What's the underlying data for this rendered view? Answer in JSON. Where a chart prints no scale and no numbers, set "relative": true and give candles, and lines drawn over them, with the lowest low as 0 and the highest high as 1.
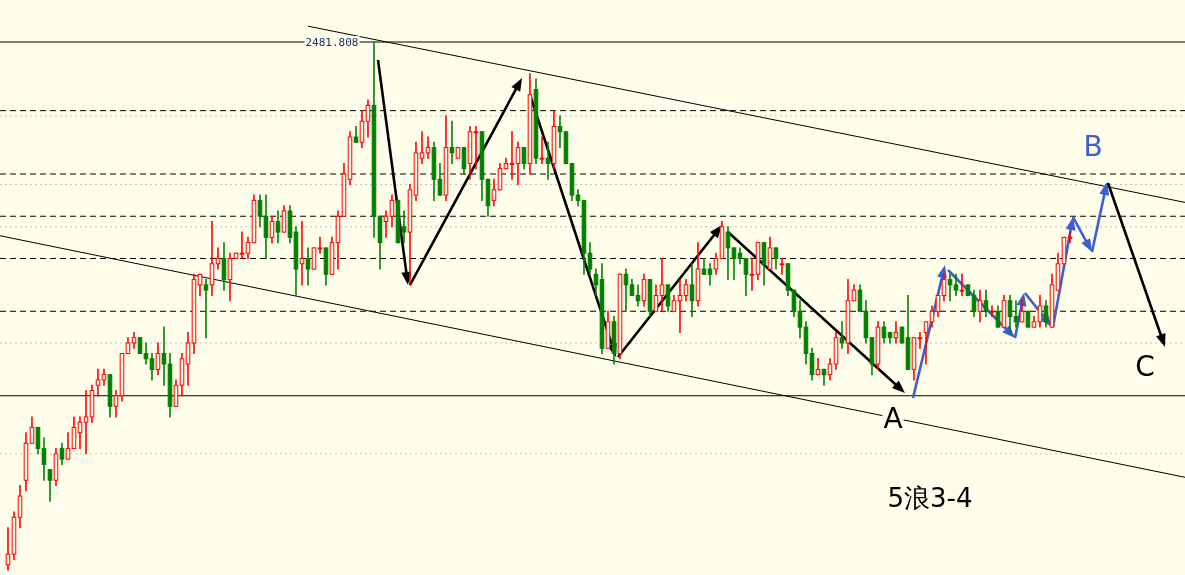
{
  "chart_data": {
    "type": "candlestick",
    "relative": true,
    "categories": [
      null,
      null,
      null,
      null,
      null,
      null,
      null,
      null,
      null,
      null,
      null,
      null,
      null,
      null,
      null,
      null,
      null,
      null,
      null,
      null,
      null,
      null,
      null,
      null,
      null,
      null,
      null,
      null,
      null,
      null,
      null,
      null,
      null,
      null,
      null,
      null,
      null,
      null,
      null,
      null,
      null,
      null,
      null,
      null,
      null,
      null,
      null,
      null,
      null,
      null,
      null,
      null,
      null,
      null,
      null,
      null,
      null,
      null,
      null,
      null,
      null,
      null,
      null,
      null,
      null,
      null,
      null,
      null,
      null,
      null,
      null,
      null,
      null,
      null,
      null,
      null,
      null,
      null,
      null,
      null,
      null,
      null,
      null,
      null,
      null,
      null,
      null,
      null,
      null,
      null,
      null,
      null,
      null,
      null,
      null,
      null,
      null,
      null,
      null,
      null,
      null,
      null,
      null,
      null,
      null,
      null,
      null,
      null,
      null,
      null,
      null,
      null,
      null,
      null,
      null,
      null,
      null,
      null,
      null,
      null,
      null,
      null,
      null,
      null,
      null,
      null,
      null,
      null,
      null,
      null,
      null,
      null,
      null,
      null,
      null,
      null,
      null,
      null,
      null,
      null,
      null,
      null,
      null,
      null,
      null,
      null,
      null,
      null,
      null,
      null,
      null,
      null,
      null,
      null,
      null,
      null,
      null,
      null,
      null,
      null,
      null,
      null,
      null,
      null,
      null,
      null,
      null,
      null,
      null,
      null,
      null,
      null,
      null,
      null,
      null,
      null,
      null,
      null
    ],
    "ohlc": [
      [
        0.01,
        0.08,
        0.0,
        0.03
      ],
      [
        0.03,
        0.11,
        0.02,
        0.1
      ],
      [
        0.1,
        0.16,
        0.08,
        0.14
      ],
      [
        0.17,
        0.26,
        0.15,
        0.24
      ],
      [
        0.24,
        0.29,
        0.24,
        0.27
      ],
      [
        0.27,
        0.27,
        0.22,
        0.23
      ],
      [
        0.23,
        0.25,
        0.17,
        0.2
      ],
      [
        0.19,
        0.19,
        0.13,
        0.17
      ],
      [
        0.17,
        0.23,
        0.16,
        0.22
      ],
      [
        0.23,
        0.24,
        0.2,
        0.21
      ],
      [
        0.21,
        0.26,
        0.21,
        0.23
      ],
      [
        0.23,
        0.29,
        0.23,
        0.27
      ],
      [
        0.26,
        0.29,
        0.23,
        0.28
      ],
      [
        0.28,
        0.34,
        0.22,
        0.29
      ],
      [
        0.29,
        0.35,
        0.28,
        0.34
      ],
      [
        0.35,
        0.38,
        0.33,
        0.36
      ],
      [
        0.36,
        0.38,
        0.35,
        0.37
      ],
      [
        0.37,
        0.37,
        0.29,
        0.31
      ],
      [
        0.31,
        0.34,
        0.29,
        0.33
      ],
      [
        0.33,
        0.41,
        0.32,
        0.41
      ],
      [
        0.41,
        0.44,
        0.41,
        0.43
      ],
      [
        0.43,
        0.45,
        0.42,
        0.44
      ],
      [
        0.44,
        0.44,
        0.41,
        0.41
      ],
      [
        0.41,
        0.43,
        0.39,
        0.4
      ],
      [
        0.4,
        0.41,
        0.36,
        0.38
      ],
      [
        0.38,
        0.43,
        0.37,
        0.41
      ],
      [
        0.41,
        0.46,
        0.35,
        0.39
      ],
      [
        0.39,
        0.41,
        0.29,
        0.31
      ],
      [
        0.31,
        0.36,
        0.31,
        0.35
      ],
      [
        0.35,
        0.41,
        0.33,
        0.4
      ],
      [
        0.39,
        0.45,
        0.35,
        0.43
      ],
      [
        0.43,
        0.56,
        0.41,
        0.55
      ],
      [
        0.54,
        0.56,
        0.52,
        0.56
      ],
      [
        0.54,
        0.55,
        0.44,
        0.53
      ],
      [
        0.54,
        0.66,
        0.52,
        0.58
      ],
      [
        0.58,
        0.61,
        0.57,
        0.59
      ],
      [
        0.59,
        0.62,
        0.53,
        0.55
      ],
      [
        0.55,
        0.6,
        0.51,
        0.59
      ],
      [
        0.59,
        0.6,
        0.59,
        0.6
      ],
      [
        0.6,
        0.64,
        0.59,
        0.6
      ],
      [
        0.6,
        0.63,
        0.59,
        0.62
      ],
      [
        0.62,
        0.71,
        0.62,
        0.7
      ],
      [
        0.7,
        0.71,
        0.65,
        0.67
      ],
      [
        0.67,
        0.71,
        0.59,
        0.63
      ],
      [
        0.63,
        0.67,
        0.62,
        0.66
      ],
      [
        0.66,
        0.68,
        0.62,
        0.64
      ],
      [
        0.64,
        0.69,
        0.64,
        0.68
      ],
      [
        0.68,
        0.69,
        0.62,
        0.63
      ],
      [
        0.64,
        0.65,
        0.52,
        0.57
      ],
      [
        0.58,
        0.66,
        0.54,
        0.59
      ],
      [
        0.59,
        0.61,
        0.54,
        0.57
      ],
      [
        0.57,
        0.61,
        0.57,
        0.61
      ],
      [
        0.61,
        0.63,
        0.6,
        0.61
      ],
      [
        0.61,
        0.61,
        0.54,
        0.56
      ],
      [
        0.56,
        0.63,
        0.56,
        0.62
      ],
      [
        0.62,
        0.68,
        0.57,
        0.67
      ],
      [
        0.67,
        0.77,
        0.67,
        0.75
      ],
      [
        0.74,
        0.83,
        0.73,
        0.82
      ],
      [
        0.82,
        0.84,
        0.81,
        0.81
      ],
      [
        0.81,
        0.87,
        0.8,
        0.85
      ],
      [
        0.85,
        0.89,
        0.82,
        0.88
      ],
      [
        0.88,
        1.0,
        0.63,
        0.67
      ],
      [
        0.67,
        0.67,
        0.57,
        0.62
      ],
      [
        0.66,
        0.68,
        0.63,
        0.67
      ],
      [
        0.67,
        0.71,
        0.65,
        0.7
      ],
      [
        0.7,
        0.7,
        0.62,
        0.62
      ],
      [
        0.65,
        0.68,
        0.62,
        0.64
      ],
      [
        0.64,
        0.73,
        0.54,
        0.72
      ],
      [
        0.71,
        0.81,
        0.7,
        0.79
      ],
      [
        0.78,
        0.83,
        0.77,
        0.79
      ],
      [
        0.79,
        0.82,
        0.78,
        0.8
      ],
      [
        0.8,
        0.81,
        0.7,
        0.74
      ],
      [
        0.74,
        0.77,
        0.71,
        0.71
      ],
      [
        0.71,
        0.86,
        0.7,
        0.8
      ],
      [
        0.8,
        0.85,
        0.77,
        0.79
      ],
      [
        0.78,
        0.8,
        0.78,
        0.8
      ],
      [
        0.8,
        0.8,
        0.75,
        0.76
      ],
      [
        0.77,
        0.84,
        0.74,
        0.83
      ],
      [
        0.83,
        0.84,
        0.76,
        0.83
      ],
      [
        0.83,
        0.83,
        0.7,
        0.74
      ],
      [
        0.74,
        0.74,
        0.67,
        0.69
      ],
      [
        0.7,
        0.74,
        0.69,
        0.72
      ],
      [
        0.72,
        0.77,
        0.72,
        0.76
      ],
      [
        0.76,
        0.78,
        0.76,
        0.77
      ],
      [
        0.77,
        0.83,
        0.74,
        0.77
      ],
      [
        0.77,
        0.81,
        0.73,
        0.8
      ],
      [
        0.8,
        0.8,
        0.76,
        0.77
      ],
      [
        0.77,
        0.94,
        0.75,
        0.9
      ],
      [
        0.91,
        0.93,
        0.77,
        0.78
      ],
      [
        0.78,
        0.82,
        0.77,
        0.78
      ],
      [
        0.78,
        0.81,
        0.74,
        0.77
      ],
      [
        0.77,
        0.87,
        0.76,
        0.84
      ],
      [
        0.84,
        0.86,
        0.8,
        0.83
      ],
      [
        0.83,
        0.83,
        0.77,
        0.77
      ],
      [
        0.77,
        0.77,
        0.7,
        0.71
      ],
      [
        0.71,
        0.72,
        0.69,
        0.7
      ],
      [
        0.7,
        0.7,
        0.56,
        0.6
      ],
      [
        0.6,
        0.62,
        0.56,
        0.57
      ],
      [
        0.56,
        0.57,
        0.52,
        0.54
      ],
      [
        0.55,
        0.58,
        0.41,
        0.42
      ],
      [
        0.42,
        0.49,
        0.42,
        0.47
      ],
      [
        0.47,
        0.48,
        0.39,
        0.41
      ],
      [
        0.41,
        0.56,
        0.4,
        0.56
      ],
      [
        0.56,
        0.57,
        0.49,
        0.54
      ],
      [
        0.54,
        0.55,
        0.52,
        0.52
      ],
      [
        0.52,
        0.54,
        0.5,
        0.51
      ],
      [
        0.51,
        0.56,
        0.5,
        0.55
      ],
      [
        0.55,
        0.55,
        0.48,
        0.49
      ],
      [
        0.49,
        0.54,
        0.49,
        0.52
      ],
      [
        0.52,
        0.59,
        0.49,
        0.54
      ],
      [
        0.54,
        0.54,
        0.49,
        0.5
      ],
      [
        0.49,
        0.52,
        0.49,
        0.51
      ],
      [
        0.51,
        0.55,
        0.45,
        0.52
      ],
      [
        0.52,
        0.55,
        0.51,
        0.54
      ],
      [
        0.54,
        0.58,
        0.48,
        0.51
      ],
      [
        0.51,
        0.62,
        0.5,
        0.57
      ],
      [
        0.57,
        0.59,
        0.56,
        0.56
      ],
      [
        0.57,
        0.58,
        0.54,
        0.56
      ],
      [
        0.57,
        0.6,
        0.56,
        0.59
      ],
      [
        0.59,
        0.66,
        0.59,
        0.65
      ],
      [
        0.64,
        0.65,
        0.55,
        0.61
      ],
      [
        0.61,
        0.61,
        0.55,
        0.59
      ],
      [
        0.6,
        0.61,
        0.58,
        0.59
      ],
      [
        0.59,
        0.59,
        0.52,
        0.56
      ],
      [
        0.56,
        0.59,
        0.53,
        0.56
      ],
      [
        0.56,
        0.62,
        0.55,
        0.62
      ],
      [
        0.62,
        0.62,
        0.54,
        0.58
      ],
      [
        0.57,
        0.63,
        0.57,
        0.61
      ],
      [
        0.61,
        0.61,
        0.57,
        0.59
      ],
      [
        0.58,
        0.59,
        0.56,
        0.58
      ],
      [
        0.58,
        0.58,
        0.52,
        0.53
      ],
      [
        0.53,
        0.53,
        0.48,
        0.49
      ],
      [
        0.49,
        0.51,
        0.44,
        0.46
      ],
      [
        0.46,
        0.47,
        0.39,
        0.41
      ],
      [
        0.41,
        0.42,
        0.36,
        0.37
      ],
      [
        0.37,
        0.4,
        0.37,
        0.38
      ],
      [
        0.38,
        0.38,
        0.35,
        0.37
      ],
      [
        0.37,
        0.4,
        0.36,
        0.39
      ],
      [
        0.39,
        0.45,
        0.38,
        0.44
      ],
      [
        0.44,
        0.47,
        0.42,
        0.43
      ],
      [
        0.43,
        0.55,
        0.41,
        0.51
      ],
      [
        0.51,
        0.54,
        0.51,
        0.53
      ],
      [
        0.53,
        0.54,
        0.49,
        0.49
      ],
      [
        0.49,
        0.51,
        0.43,
        0.44
      ],
      [
        0.44,
        0.44,
        0.37,
        0.39
      ],
      [
        0.39,
        0.47,
        0.38,
        0.46
      ],
      [
        0.46,
        0.47,
        0.43,
        0.44
      ],
      [
        0.45,
        0.45,
        0.43,
        0.44
      ],
      [
        0.44,
        0.47,
        0.43,
        0.45
      ],
      [
        0.46,
        0.46,
        0.43,
        0.43
      ],
      [
        0.44,
        0.52,
        0.38,
        0.38
      ],
      [
        0.38,
        0.44,
        0.36,
        0.44
      ],
      [
        0.44,
        0.45,
        0.42,
        0.44
      ],
      [
        0.45,
        0.47,
        0.39,
        0.47
      ],
      [
        0.47,
        0.5,
        0.46,
        0.49
      ],
      [
        0.49,
        0.52,
        0.48,
        0.52
      ],
      [
        0.52,
        0.56,
        0.51,
        0.55
      ],
      [
        0.55,
        0.56,
        0.51,
        0.54
      ],
      [
        0.54,
        0.56,
        0.52,
        0.53
      ],
      [
        0.53,
        0.56,
        0.52,
        0.53
      ],
      [
        0.54,
        0.54,
        0.52,
        0.52
      ],
      [
        0.52,
        0.53,
        0.48,
        0.49
      ],
      [
        0.49,
        0.53,
        0.47,
        0.51
      ],
      [
        0.51,
        0.53,
        0.48,
        0.49
      ],
      [
        0.49,
        0.5,
        0.48,
        0.49
      ],
      [
        0.49,
        0.5,
        0.46,
        0.46
      ],
      [
        0.46,
        0.52,
        0.46,
        0.51
      ],
      [
        0.51,
        0.52,
        0.45,
        0.48
      ],
      [
        0.48,
        0.51,
        0.46,
        0.47
      ],
      [
        0.47,
        0.51,
        0.47,
        0.49
      ],
      [
        0.49,
        0.49,
        0.46,
        0.46
      ],
      [
        0.46,
        0.48,
        0.46,
        0.47
      ],
      [
        0.47,
        0.52,
        0.46,
        0.5
      ],
      [
        0.5,
        0.51,
        0.46,
        0.47
      ],
      [
        0.46,
        0.56,
        0.46,
        0.54
      ],
      [
        0.53,
        0.6,
        0.53,
        0.58
      ],
      [
        0.58,
        0.63,
        0.58,
        0.63
      ],
      [
        0.63,
        0.64,
        0.62,
        0.63
      ]
    ],
    "series": [
      {
        "type": "line",
        "color": "#000000",
        "values": [
          null,
          null,
          null,
          null,
          null,
          null,
          null,
          null,
          null,
          null,
          null,
          null,
          null,
          null,
          null,
          null,
          null,
          null,
          null,
          null,
          null,
          null,
          null,
          null,
          null,
          null,
          null,
          null,
          null,
          null,
          null,
          null,
          null,
          null,
          null,
          null,
          null,
          null,
          null,
          null,
          null,
          null,
          null,
          null,
          null,
          null,
          null,
          null,
          null,
          null,
          1.03,
          null,
          null,
          null,
          null,
          null,
          null,
          null,
          null,
          null,
          null,
          null,
          null,
          null,
          null,
          null,
          null,
          null,
          null,
          null,
          null,
          null,
          null,
          null,
          null,
          null,
          null,
          null,
          null,
          null,
          null,
          null,
          null,
          null,
          null,
          null,
          null,
          null,
          null,
          null,
          null,
          null,
          null,
          null,
          null,
          null,
          null,
          null,
          null,
          null,
          null,
          null,
          null,
          null,
          null,
          null,
          null,
          null,
          null,
          null,
          null,
          null,
          null,
          null,
          null,
          null,
          null,
          null,
          null,
          null,
          null,
          null,
          null,
          null,
          null,
          null,
          null,
          null,
          null,
          null,
          null,
          null,
          null,
          null,
          null,
          null,
          null,
          null,
          null,
          null,
          null,
          null,
          null,
          null,
          null,
          null,
          null,
          null,
          null,
          null,
          null,
          null,
          null,
          null,
          null,
          null,
          null,
          null,
          null,
          null,
          null,
          null,
          null,
          null,
          null,
          null,
          null,
          null,
          null,
          null,
          null,
          null,
          null,
          null,
          null,
          null,
          null,
          0.74
        ]
      },
      {
        "type": "line",
        "color": "#000000",
        "values": [
          0.63,
          null,
          null,
          null,
          null,
          null,
          null,
          null,
          null,
          null,
          null,
          null,
          null,
          null,
          null,
          null,
          null,
          null,
          null,
          null,
          null,
          null,
          null,
          null,
          null,
          null,
          null,
          null,
          null,
          null,
          null,
          null,
          null,
          null,
          null,
          null,
          null,
          null,
          null,
          null,
          null,
          null,
          null,
          null,
          null,
          null,
          null,
          null,
          null,
          null,
          null,
          null,
          null,
          null,
          null,
          null,
          null,
          null,
          null,
          null,
          null,
          null,
          null,
          null,
          null,
          null,
          null,
          null,
          null,
          null,
          null,
          null,
          null,
          null,
          null,
          null,
          null,
          null,
          null,
          null,
          null,
          null,
          null,
          null,
          null,
          null,
          null,
          null,
          null,
          null,
          null,
          null,
          null,
          null,
          null,
          null,
          null,
          null,
          null,
          null,
          null,
          null,
          null,
          null,
          null,
          null,
          null,
          null,
          null,
          null,
          null,
          null,
          null,
          null,
          null,
          null,
          null,
          null,
          null,
          null,
          null,
          null,
          null,
          null,
          null,
          null,
          null,
          null,
          null,
          null,
          null,
          null,
          null,
          null,
          null,
          null,
          null,
          null,
          null,
          null,
          null,
          null,
          null,
          null,
          null,
          null,
          null,
          null,
          null,
          null,
          null,
          null,
          null,
          null,
          null,
          null,
          null,
          null,
          null,
          null,
          null,
          null,
          null,
          null,
          null,
          null,
          null,
          null,
          null,
          null,
          null,
          null,
          null,
          null,
          null,
          null,
          null,
          0.22
        ]
      }
    ],
    "ref_lines": [
      {
        "axis": "y",
        "value": 0.86,
        "color": "#c0c0c0",
        "line_style": "dotted"
      },
      {
        "axis": "y",
        "value": 0.73,
        "color": "#c0c0c0",
        "line_style": "dotted"
      },
      {
        "axis": "y",
        "value": 0.65,
        "color": "#c0c0c0",
        "line_style": "dotted"
      },
      {
        "axis": "y",
        "value": 0.43,
        "color": "#c0c0c0",
        "line_style": "dotted"
      },
      {
        "axis": "y",
        "value": 0.22,
        "color": "#c0c0c0",
        "line_style": "dotted"
      },
      {
        "axis": "y",
        "value": 1.0,
        "color": "#000000",
        "line_style": "solid"
      },
      {
        "axis": "y",
        "value": 0.33,
        "color": "#000000",
        "line_style": "solid"
      },
      {
        "axis": "y",
        "value": 0.87,
        "color": "#000000",
        "line_style": "dashed"
      },
      {
        "axis": "y",
        "value": 0.75,
        "color": "#000000",
        "line_style": "dashed"
      },
      {
        "axis": "y",
        "value": 0.67,
        "color": "#000000",
        "line_style": "dashed"
      },
      {
        "axis": "y",
        "value": 0.59,
        "color": "#000000",
        "line_style": "dashed"
      },
      {
        "axis": "y",
        "value": 0.49,
        "color": "#000000",
        "line_style": "dashed"
      }
    ],
    "annotations": [
      "2481.808",
      "A",
      "B",
      "C",
      "5浪3-4"
    ]
  }
}
